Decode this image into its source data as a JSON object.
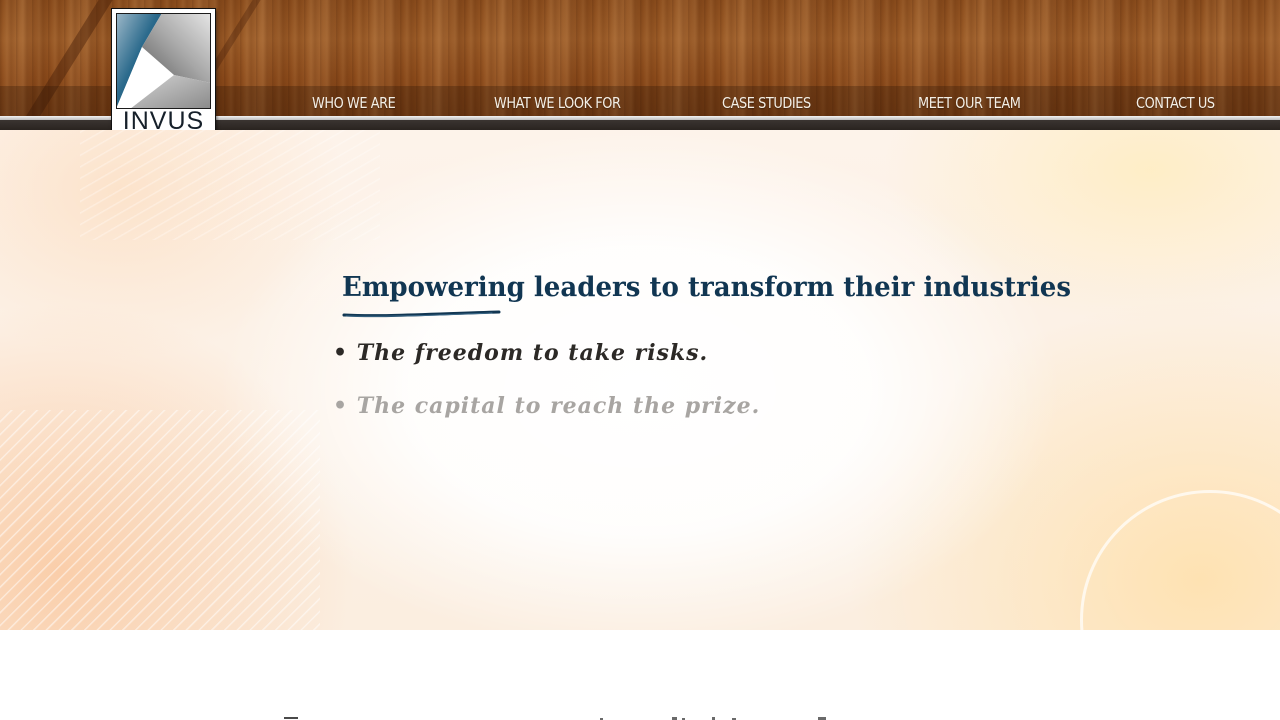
{
  "brand": {
    "logo_text": "INVUS"
  },
  "nav": {
    "items": [
      {
        "label": "WHO WE ARE"
      },
      {
        "label": "WHAT WE LOOK FOR"
      },
      {
        "label": "CASE STUDIES"
      },
      {
        "label": "MEET OUR TEAM"
      },
      {
        "label": "CONTACT US"
      }
    ]
  },
  "hero": {
    "headline": "Empowering leaders to transform their industries",
    "bullets": [
      "• The freedom to take risks.",
      "• The capital to reach the prize."
    ]
  },
  "colors": {
    "headline": "#113652",
    "bullet_active": "#2c2926",
    "bullet_inactive": "#a8a5a2",
    "nav_text": "#f4efe6",
    "wood": "#8a4c1c"
  },
  "icons": [
    "invus-logo-mark"
  ]
}
